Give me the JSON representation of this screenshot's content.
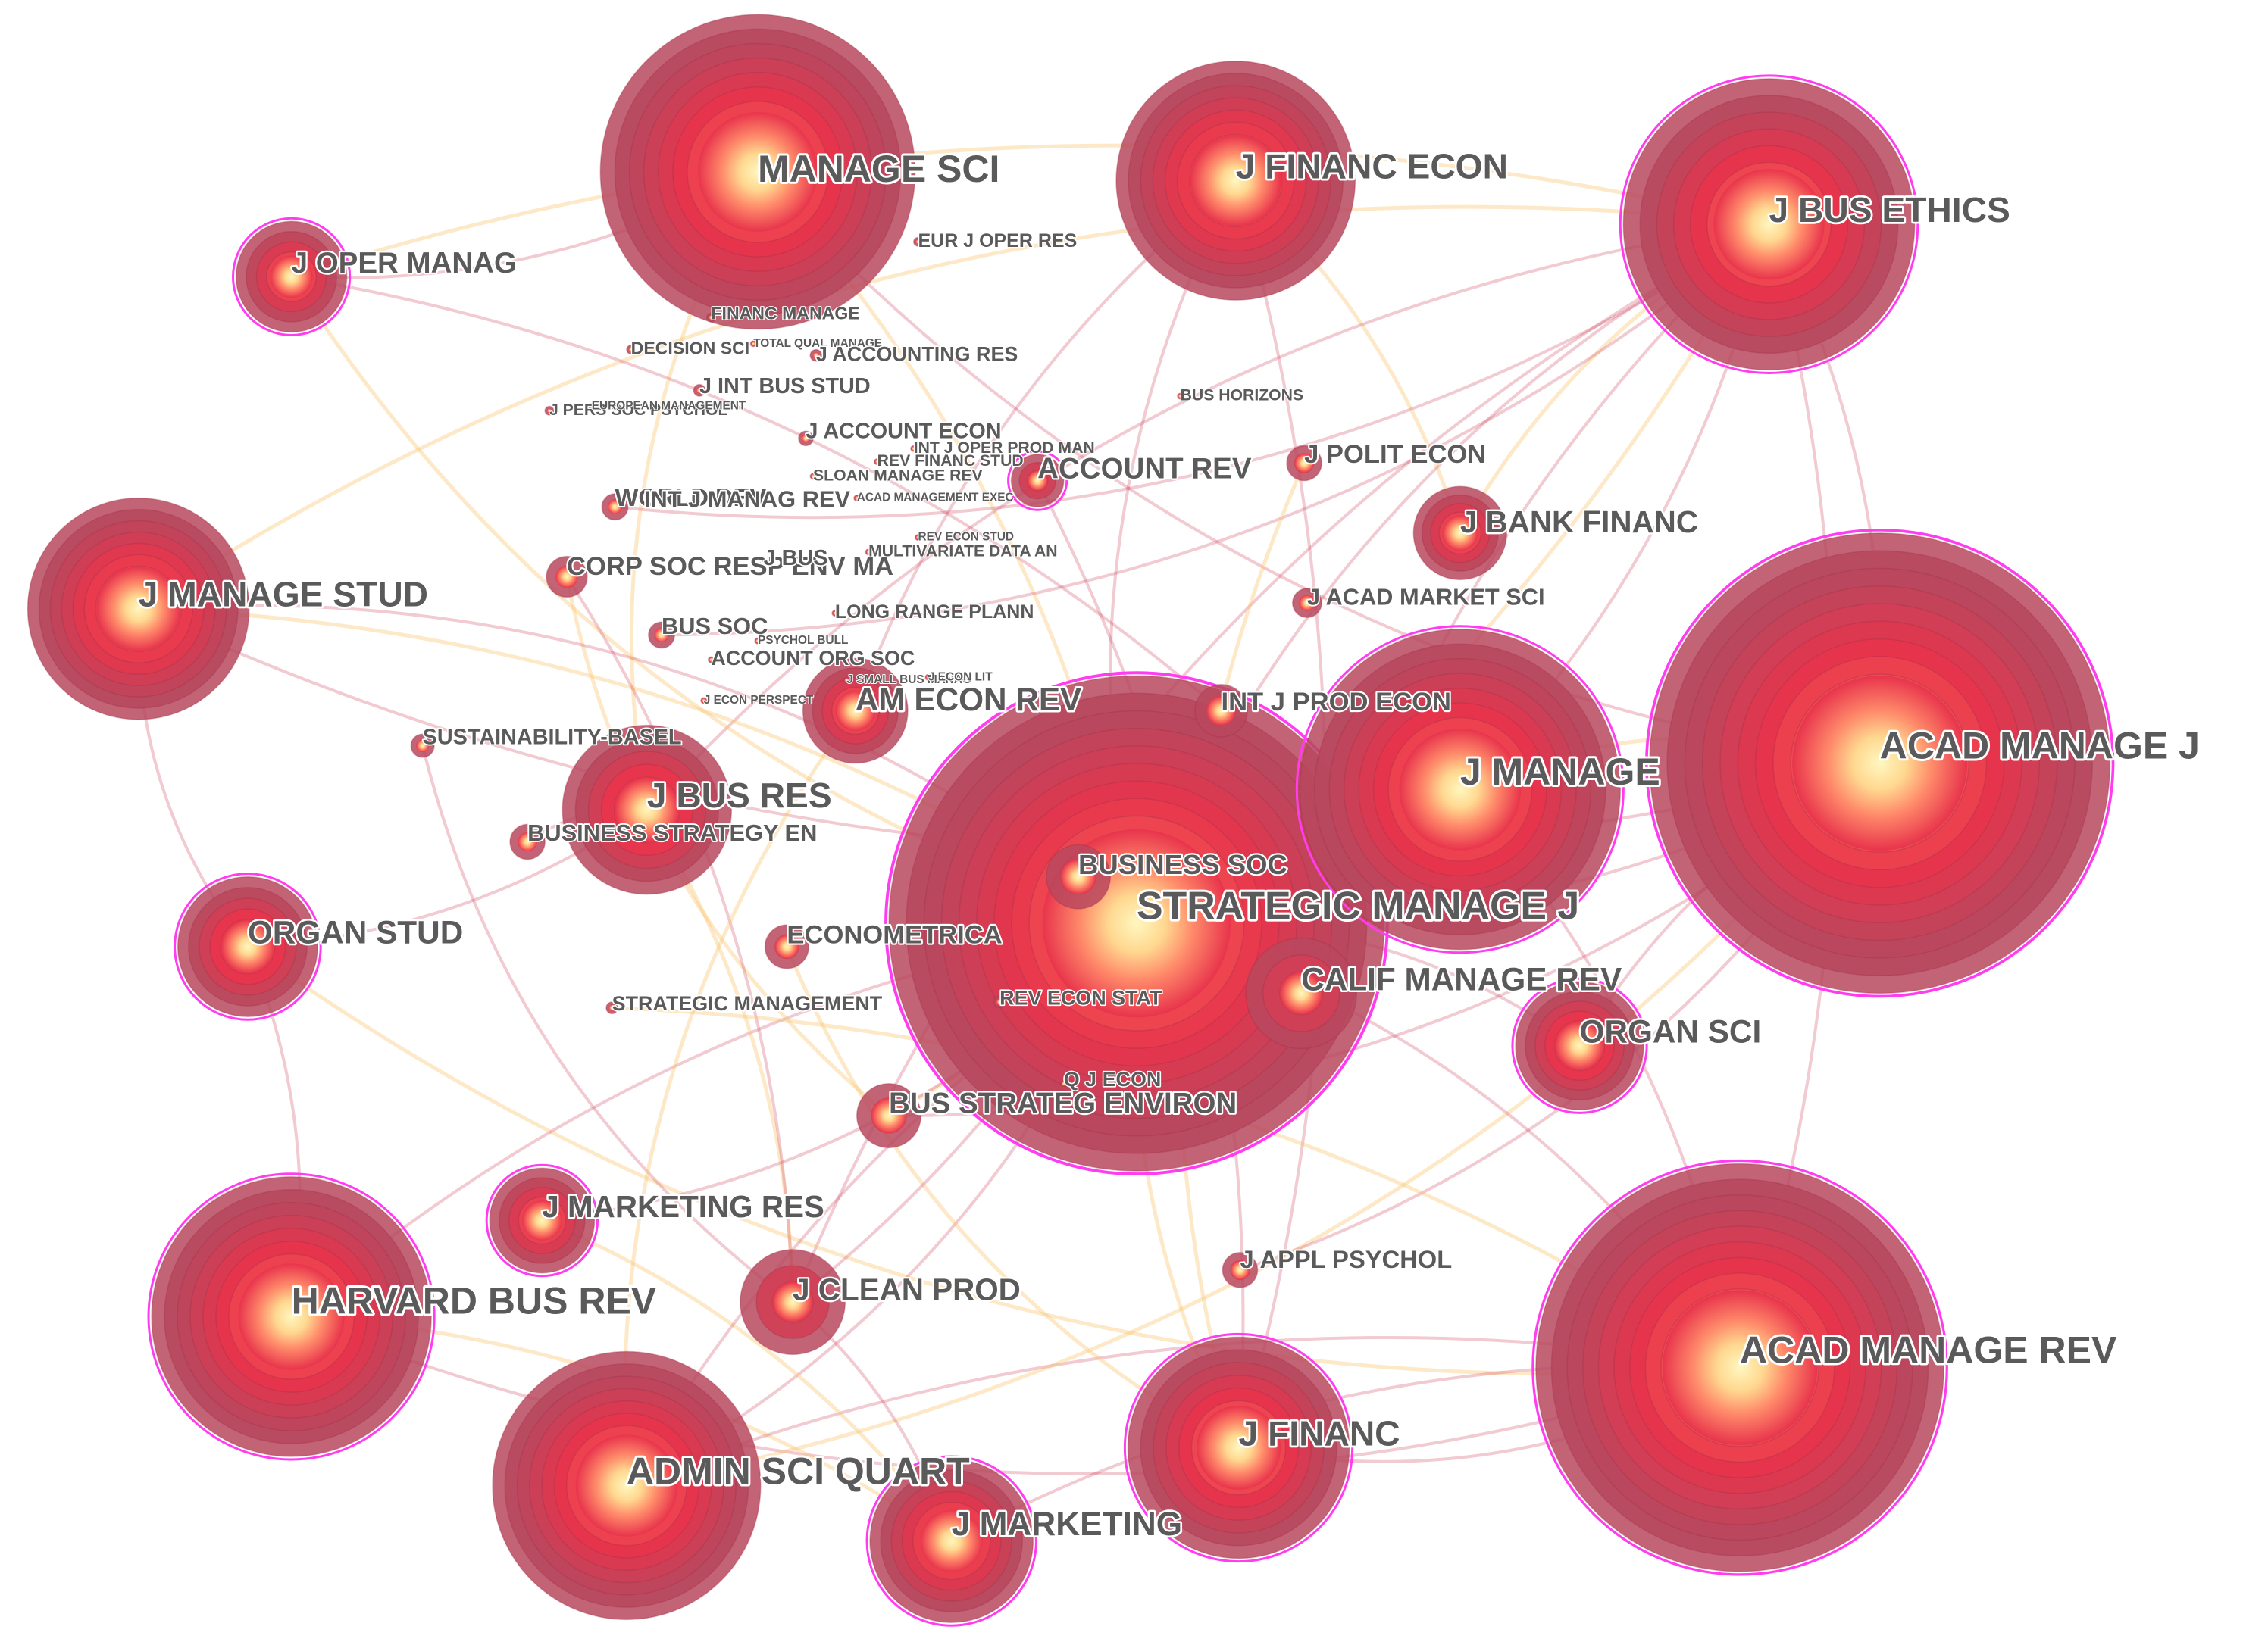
{
  "colors": {
    "ring_outer": "#b8485e",
    "ring_inner": "#e8344c",
    "core_mid": "#ff8060",
    "core_center": "#fff5b8",
    "burst_halo": "#ff3cf0",
    "link_red": "#d0405a",
    "link_yellow": "#f8c060",
    "label": "#5a5a5a"
  },
  "network": {
    "nodes": [
      {
        "id": "manage-sci",
        "label": "MANAGE SCI",
        "rings": 10,
        "size": "xl",
        "halo": false
      },
      {
        "id": "j-financ-econ",
        "label": "J FINANC ECON",
        "rings": 9,
        "size": "l",
        "halo": false
      },
      {
        "id": "j-bus-ethics",
        "label": "J BUS ETHICS",
        "rings": 8,
        "size": "l",
        "halo": true
      },
      {
        "id": "j-oper-manag",
        "label": "J OPER MANAG",
        "rings": 5,
        "size": "m",
        "halo": true
      },
      {
        "id": "eur-j-oper-res",
        "label": "EUR J OPER RES",
        "rings": 1,
        "size": "xs",
        "halo": false
      },
      {
        "id": "financ-manage",
        "label": "FINANC MANAGE",
        "rings": 1,
        "size": "xs",
        "halo": false
      },
      {
        "id": "decision-sci",
        "label": "DECISION SCI",
        "rings": 1,
        "size": "xs",
        "halo": false
      },
      {
        "id": "total-qual-manage",
        "label": "TOTAL QUAL MANAGE",
        "rings": 1,
        "size": "xxs",
        "halo": false
      },
      {
        "id": "j-accounting-res",
        "label": "J ACCOUNTING RES",
        "rings": 1,
        "size": "xs",
        "halo": false
      },
      {
        "id": "j-int-bus-stud",
        "label": "J INT BUS STUD",
        "rings": 1,
        "size": "xs",
        "halo": false
      },
      {
        "id": "j-perf-futur",
        "label": "J PERS SOC PSYCHOL",
        "rings": 1,
        "size": "xxs",
        "halo": false
      },
      {
        "id": "european-management",
        "label": "EUROPEAN MANAGEMENT",
        "rings": 1,
        "size": "xxs",
        "halo": false
      },
      {
        "id": "bus-horizons",
        "label": "BUS HORIZONS",
        "rings": 1,
        "size": "xs",
        "halo": false
      },
      {
        "id": "j-account-econ",
        "label": "J ACCOUNT ECON",
        "rings": 1,
        "size": "xs",
        "halo": false
      },
      {
        "id": "int-j-oper-prod-man",
        "label": "INT J OPER PROD MAN",
        "rings": 1,
        "size": "xs",
        "halo": false
      },
      {
        "id": "rev-financ-stud",
        "label": "REV FINANC STUD",
        "rings": 1,
        "size": "xs",
        "halo": false
      },
      {
        "id": "sloan-manage-rev",
        "label": "SLOAN MANAGE REV",
        "rings": 1,
        "size": "xs",
        "halo": false
      },
      {
        "id": "account-rev",
        "label": "ACCOUNT REV",
        "rings": 3,
        "size": "s",
        "halo": true
      },
      {
        "id": "j-polit-econ",
        "label": "J POLIT ECON",
        "rings": 2,
        "size": "s",
        "halo": false
      },
      {
        "id": "world-dev",
        "label": "WORLD DEV",
        "rings": 1,
        "size": "s",
        "halo": false
      },
      {
        "id": "int-j-manag-rev",
        "label": "INT J MANAG REV",
        "rings": 1,
        "size": "xs",
        "halo": false
      },
      {
        "id": "acad-management-exec",
        "label": "ACAD MANAGEMENT EXEC",
        "rings": 1,
        "size": "xxs",
        "halo": false
      },
      {
        "id": "j-bank-financ",
        "label": "J BANK FINANC",
        "rings": 5,
        "size": "m",
        "halo": false
      },
      {
        "id": "j-manage-stud",
        "label": "J MANAGE STUD",
        "rings": 9,
        "size": "l",
        "halo": false
      },
      {
        "id": "corp-soc-resp-env-ma",
        "label": "CORP SOC RESP ENV MA",
        "rings": 1,
        "size": "s",
        "halo": false
      },
      {
        "id": "j-bus",
        "label": "J BUS",
        "rings": 1,
        "size": "xs",
        "halo": false
      },
      {
        "id": "rev-econ-stud",
        "label": "REV ECON STUD",
        "rings": 1,
        "size": "xxs",
        "halo": false
      },
      {
        "id": "multivariate-data-an",
        "label": "MULTIVARIATE DATA AN",
        "rings": 1,
        "size": "xs",
        "halo": false
      },
      {
        "id": "j-acad-market-sci",
        "label": "J ACAD MARKET SCI",
        "rings": 1,
        "size": "s",
        "halo": false
      },
      {
        "id": "long-range-plann",
        "label": "LONG RANGE PLANN",
        "rings": 1,
        "size": "xs",
        "halo": false
      },
      {
        "id": "bus-soc",
        "label": "BUS SOC",
        "rings": 1,
        "size": "s",
        "halo": false
      },
      {
        "id": "psychol-bull",
        "label": "PSYCHOL BULL",
        "rings": 1,
        "size": "xxs",
        "halo": false
      },
      {
        "id": "account-org-soc",
        "label": "ACCOUNT ORG SOC",
        "rings": 1,
        "size": "xs",
        "halo": false
      },
      {
        "id": "j-small-bus-manag",
        "label": "J SMALL BUS MANAG",
        "rings": 1,
        "size": "xxs",
        "halo": false
      },
      {
        "id": "j-econ-lit",
        "label": "J ECON LIT",
        "rings": 1,
        "size": "xxs",
        "halo": false
      },
      {
        "id": "j-econ-perspect",
        "label": "J ECON PERSPECT",
        "rings": 1,
        "size": "xxs",
        "halo": false
      },
      {
        "id": "am-econ-rev",
        "label": "AM ECON REV",
        "rings": 5,
        "size": "m",
        "halo": false
      },
      {
        "id": "int-j-prod-econ",
        "label": "INT J PROD ECON",
        "rings": 1,
        "size": "m",
        "halo": false
      },
      {
        "id": "acad-manage-j",
        "label": "ACAD MANAGE J",
        "rings": 12,
        "size": "xxl",
        "halo": true
      },
      {
        "id": "j-manage",
        "label": "J MANAGE",
        "rings": 10,
        "size": "xl",
        "halo": true
      },
      {
        "id": "sustainability-basel",
        "label": "SUSTAINABILITY-BASEL",
        "rings": 1,
        "size": "s",
        "halo": false
      },
      {
        "id": "j-bus-res",
        "label": "J BUS RES",
        "rings": 6,
        "size": "l",
        "halo": false
      },
      {
        "id": "business-strategy-en",
        "label": "BUSINESS STRATEGY EN",
        "rings": 1,
        "size": "s",
        "halo": false
      },
      {
        "id": "business-soc",
        "label": "BUSINESS SOC",
        "rings": 2,
        "size": "m",
        "halo": false
      },
      {
        "id": "strategic-manage-j",
        "label": "STRATEGIC MANAGE J",
        "rings": 13,
        "size": "xxl",
        "halo": true
      },
      {
        "id": "organ-stud",
        "label": "ORGAN STUD",
        "rings": 6,
        "size": "m",
        "halo": true
      },
      {
        "id": "econometrica",
        "label": "ECONOMETRICA",
        "rings": 2,
        "size": "s",
        "halo": false
      },
      {
        "id": "calif-manage-rev",
        "label": "CALIF MANAGE REV",
        "rings": 3,
        "size": "m",
        "halo": false
      },
      {
        "id": "strategic-management",
        "label": "STRATEGIC MANAGEMENT",
        "rings": 1,
        "size": "xs",
        "halo": false
      },
      {
        "id": "rev-econ-stat",
        "label": "REV ECON STAT",
        "rings": 1,
        "size": "xs",
        "halo": false
      },
      {
        "id": "organ-sci",
        "label": "ORGAN SCI",
        "rings": 6,
        "size": "m",
        "halo": true
      },
      {
        "id": "q-j-econ",
        "label": "Q J ECON",
        "rings": 1,
        "size": "xs",
        "halo": false
      },
      {
        "id": "bus-strateg-environ",
        "label": "BUS STRATEG ENVIRON",
        "rings": 2,
        "size": "m",
        "halo": false
      },
      {
        "id": "j-marketing-res",
        "label": "J MARKETING RES",
        "rings": 5,
        "size": "m",
        "halo": true
      },
      {
        "id": "j-appl-psychol",
        "label": "J APPL PSYCHOL",
        "rings": 2,
        "size": "s",
        "halo": false
      },
      {
        "id": "harvard-bus-rev",
        "label": "HARVARD BUS REV",
        "rings": 10,
        "size": "l",
        "halo": true
      },
      {
        "id": "j-clean-prod",
        "label": "J CLEAN PROD",
        "rings": 3,
        "size": "m",
        "halo": false
      },
      {
        "id": "acad-manage-rev",
        "label": "ACAD MANAGE REV",
        "rings": 12,
        "size": "xxl",
        "halo": true
      },
      {
        "id": "j-financ",
        "label": "J FINANC",
        "rings": 8,
        "size": "l",
        "halo": true
      },
      {
        "id": "admin-sci-quart",
        "label": "ADMIN SCI QUART",
        "rings": 10,
        "size": "l",
        "halo": false
      },
      {
        "id": "j-marketing",
        "label": "J MARKETING",
        "rings": 7,
        "size": "m",
        "halo": true
      }
    ]
  }
}
